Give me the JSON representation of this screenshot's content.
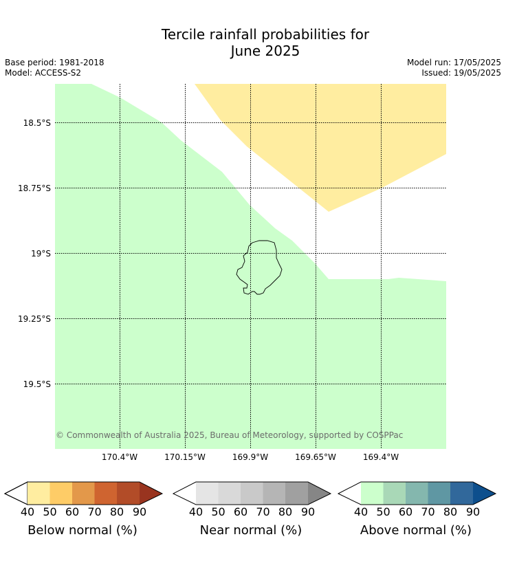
{
  "title_line1": "Tercile rainfall probabilities for",
  "title_line2": "June 2025",
  "meta": {
    "base_period": "Base period: 1981-2018",
    "model": "Model: ACCESS-S2",
    "model_run": "Model run: 17/05/2025",
    "issued": "Issued: 19/05/2025"
  },
  "map": {
    "lat_labels": [
      "18.5°S",
      "18.75°S",
      "19°S",
      "19.25°S",
      "19.5°S"
    ],
    "lon_labels": [
      "170.4°W",
      "170.15°W",
      "169.9°W",
      "169.65°W",
      "169.4°W"
    ],
    "copyright": "© Commonwealth of Australia 2025, Bureau of Meteorology, supported by COSPPac",
    "colors": {
      "above_fill": "#ccffcc",
      "below_fill": "#ffeda0",
      "gridline": "#000000",
      "coastline": "#000000"
    }
  },
  "colorbars": [
    {
      "label": "Below normal (%)",
      "ticks": [
        "40",
        "50",
        "60",
        "70",
        "80",
        "90"
      ],
      "colors": [
        "#ffeda0",
        "#fecc67",
        "#e3984a",
        "#cf6430",
        "#b24c28",
        "#99341f"
      ]
    },
    {
      "label": "Near normal (%)",
      "ticks": [
        "40",
        "50",
        "60",
        "70",
        "80",
        "90"
      ],
      "colors": [
        "#e5e5e5",
        "#d9d9d9",
        "#c9c9c9",
        "#b5b5b5",
        "#a0a0a0",
        "#868686"
      ]
    },
    {
      "label": "Above normal (%)",
      "ticks": [
        "40",
        "50",
        "60",
        "70",
        "80",
        "90"
      ],
      "colors": [
        "#ccffcc",
        "#a9d8b7",
        "#84b7ae",
        "#5f97a3",
        "#31689b",
        "#0d4f8d"
      ]
    }
  ]
}
